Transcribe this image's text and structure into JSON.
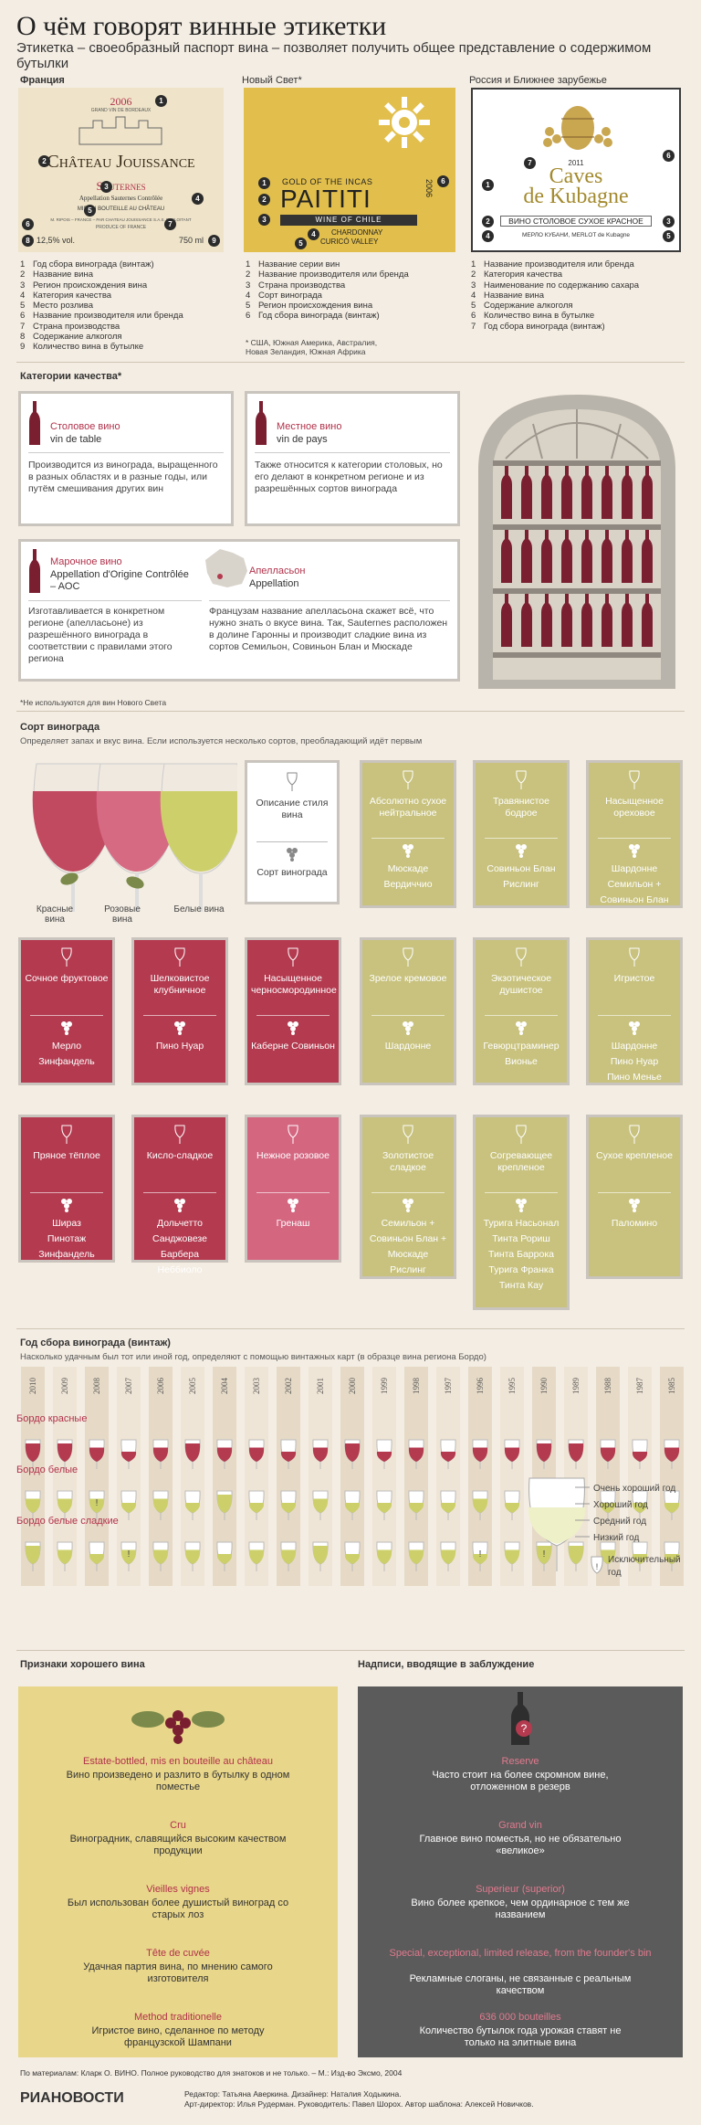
{
  "title": "О чём говорят винные этикетки",
  "subtitle": "Этикетка – своеобразный паспорт вина – позволяет получить общее представление о содержимом бутылки",
  "labels": {
    "france": {
      "heading": "Франция",
      "year": "2006",
      "small_top": "GRAND VIN DE BORDEAUX",
      "name": "Château Jouissance",
      "region": "Sauternes",
      "appellation": "Appellation Sauternes Contrôlée",
      "bottled": "MIS EN BOUTEILLE AU CHÂTEAU",
      "producer": "M. RIPOIS – FRANCE – PAR CHATEAU JOUISSANCE S.A.S. EXPLOITANT",
      "produce": "PRODUCE OF FRANCE",
      "alcohol": "12,5% vol.",
      "volume": "750 ml",
      "items": [
        "Год сбора винограда (винтаж)",
        "Название вина",
        "Регион происхождения вина",
        "Категория качества",
        "Место розлива",
        "Название производителя или бренда",
        "Страна производства",
        "Содержание алкоголя",
        "Количество вина в бутылке"
      ]
    },
    "newworld": {
      "heading": "Новый Свет*",
      "line1": "GOLD OF THE INCAS",
      "name": "PAITITI",
      "country": "WINE OF CHILE",
      "grape": "CHARDONNAY",
      "valley": "CURICÓ VALLEY",
      "year": "2006",
      "items": [
        "Название серии вин",
        "Название производителя или бренда",
        "Страна производства",
        "Сорт винограда",
        "Регион происхождения вина",
        "Год сбора винограда (винтаж)"
      ],
      "note": "* США, Южная Америка, Австралия, Новая Зеландия, Южная Африка"
    },
    "russia": {
      "heading": "Россия и Ближнее зарубежье",
      "year": "2011",
      "name1": "Caves",
      "name2": "de Kubagne",
      "category": "ВИНО СТОЛОВОЕ СУХОЕ КРАСНОЕ",
      "bottom": "МЕРЛО КУБАНИ, MERLOT de Kubagne",
      "items": [
        "Название производителя или бренда",
        "Категория качества",
        "Наименование по содержанию сахара",
        "Название вина",
        "Содержание алкоголя",
        "Количество вина в бутылке",
        "Год сбора винограда (винтаж)"
      ]
    }
  },
  "quality": {
    "heading": "Категории качества*",
    "boxes": [
      {
        "title": "Столовое вино",
        "sub": "vin de table",
        "text": "Производится из винограда, выращенного в разных областях и в разные годы, или путём смешивания других вин"
      },
      {
        "title": "Местное вино",
        "sub": "vin de pays",
        "text": "Также относится к категории столовых, но его делают в конкретном регионе и из разрешённых сортов винограда"
      },
      {
        "title": "Марочное вино",
        "sub": "Appellation d'Origine Contrôlée – AOC",
        "text": "Изготавливается в конкретном регионе (апелласьоне) из разрешённого винограда в соответствии с правилами этого региона"
      },
      {
        "title": "Апелласьон",
        "sub": "Appellation",
        "text": "Французам название апелласьона скажет всё, что нужно знать о вкусе вина. Так, Sauternes расположен в долине Гаронны и производит сладкие вина из сортов Семильон, Совиньон Блан и Мюскаде"
      }
    ],
    "note": "*Не используются для вин Нового Света"
  },
  "grapes": {
    "heading": "Сорт винограда",
    "sub": "Определяет запах и вкус вина. Если используется несколько сортов, преобладающий идёт первым",
    "glass_labels": [
      "Красные вина",
      "Розовые вина",
      "Белые вина"
    ],
    "legend_card": {
      "top": "Описание стиля вина",
      "bot": "Сорт винограда"
    },
    "cards": [
      {
        "color": "olive",
        "top": "Абсолютно сухое нейтральное",
        "bot": "Мюскаде\nВердиччио"
      },
      {
        "color": "olive",
        "top": "Травянистое бодрое",
        "bot": "Совиньон Блан\nРислинг"
      },
      {
        "color": "olive",
        "top": "Насыщенное ореховое",
        "bot": "Шардонне\nСемильон + Совиньон Блан"
      },
      {
        "color": "red",
        "top": "Сочное фруктовое",
        "bot": "Мерло\nЗинфандель"
      },
      {
        "color": "red",
        "top": "Шелковистое клубничное",
        "bot": "Пино Нуар"
      },
      {
        "color": "red",
        "top": "Насыщенное черносмородинное",
        "bot": "Каберне Совиньон"
      },
      {
        "color": "olive",
        "top": "Зрелое кремовое",
        "bot": "Шардонне"
      },
      {
        "color": "olive",
        "top": "Экзотическое душистое",
        "bot": "Гевюрцтраминер\nВионье"
      },
      {
        "color": "olive",
        "top": "Игристое",
        "bot": "Шардонне\nПино Нуар\nПино Менье"
      },
      {
        "color": "red",
        "top": "Пряное тёплое",
        "bot": "Шираз\nПинотаж\nЗинфандель"
      },
      {
        "color": "red",
        "top": "Кисло-сладкое",
        "bot": "Дольчетто\nСанджовезе\nБарбера\nНеббиоло"
      },
      {
        "color": "pink",
        "top": "Нежное розовое",
        "bot": "Гренаш"
      },
      {
        "color": "olive",
        "top": "Золотистое сладкое",
        "bot": "Семильон + Совиньон Блан + Мюскаде\nРислинг"
      },
      {
        "color": "olive",
        "top": "Согревающее крепленое",
        "bot": "Турига Насьонал\nТинта Рориш\nТинта Баррока\nТурига Франка\nТинта Кау"
      },
      {
        "color": "olive",
        "top": "Сухое крепленое",
        "bot": "Паломино"
      }
    ]
  },
  "vintage": {
    "heading": "Год сбора винограда (винтаж)",
    "sub": "Насколько удачным был тот или иной год, определяют с помощью винтажных карт (в образце вина региона Бордо)",
    "years": [
      "2010",
      "2009",
      "2008",
      "2007",
      "2006",
      "2005",
      "2004",
      "2003",
      "2002",
      "2001",
      "2000",
      "1999",
      "1998",
      "1997",
      "1996",
      "1995",
      "1990",
      "1989",
      "1988",
      "1987",
      "1985"
    ],
    "rows": [
      {
        "name": "Бордо красные",
        "type": "red",
        "levels": [
          4,
          4,
          3,
          2,
          3,
          4,
          3,
          3,
          2,
          3,
          4,
          2,
          3,
          2,
          3,
          3,
          4,
          4,
          3,
          2,
          3
        ]
      },
      {
        "name": "Бордо белые",
        "type": "white",
        "levels": [
          3,
          3,
          3,
          2,
          3,
          2,
          4,
          2,
          2,
          3,
          2,
          2,
          2,
          2,
          3,
          2,
          3,
          3,
          2,
          2,
          2
        ]
      },
      {
        "name": "Бордо белые сладкие",
        "type": "white",
        "levels": [
          4,
          3,
          2,
          3,
          3,
          3,
          2,
          3,
          3,
          4,
          2,
          3,
          3,
          3,
          2,
          3,
          4,
          4,
          3,
          2,
          2
        ]
      }
    ],
    "legend": [
      "Очень хороший год",
      "Хороший год",
      "Средний год",
      "Низкий год",
      "Исключительный год"
    ]
  },
  "good": {
    "heading": "Признаки хорошего вина",
    "items": [
      {
        "h": "Estate-bottled, mis en bouteille au château",
        "t": "Вино произведено и разлито в бутылку в одном поместье"
      },
      {
        "h": "Cru",
        "t": "Виноградник, славящийся высоким качеством продукции"
      },
      {
        "h": "Vieilles vignes",
        "t": "Был использован более душистый виноград со старых лоз"
      },
      {
        "h": "Tête de cuvée",
        "t": "Удачная партия вина, по мнению самого изготовителя"
      },
      {
        "h": "Method traditionelle",
        "t": "Игристое вино, сделанное по методу французской Шампани"
      }
    ]
  },
  "misleading": {
    "heading": "Надписи, вводящие в заблуждение",
    "items": [
      {
        "h": "Reserve",
        "t": "Часто стоит на более скромном вине, отложенном в резерв"
      },
      {
        "h": "Grand vin",
        "t": "Главное вино поместья, но не обязательно «великое»"
      },
      {
        "h": "Superieur (superior)",
        "t": "Вино более крепкое, чем ординарное с тем же названием"
      },
      {
        "h": "Special, exceptional, limited release, from the founder's bin",
        "t": "Рекламные слоганы, не связанные с реальным качеством"
      },
      {
        "h": "636 000 bouteilles",
        "t": "Количество бутылок года урожая ставят не только на элитные вина"
      }
    ]
  },
  "footer": {
    "source": "По материалам: Кларк О. ВИНО. Полное руководство для знатоков и не только. – М.: Изд-во Эксмо, 2004",
    "brand": "РИАНОВОСТИ",
    "credits1": "Редактор: Татьяна Аверкина. Дизайнер: Наталия Ходыкина.",
    "credits2": "Арт-директор: Илья Рудерман. Руководитель: Павел Шорох. Автор шаблона: Алексей Новичков."
  },
  "colors": {
    "red": "#b33a4f",
    "pink": "#d46680",
    "olive": "#c8c27e",
    "gold": "#e2bf4c",
    "dark": "#5a5a5a",
    "beige": "#efe4c9"
  }
}
